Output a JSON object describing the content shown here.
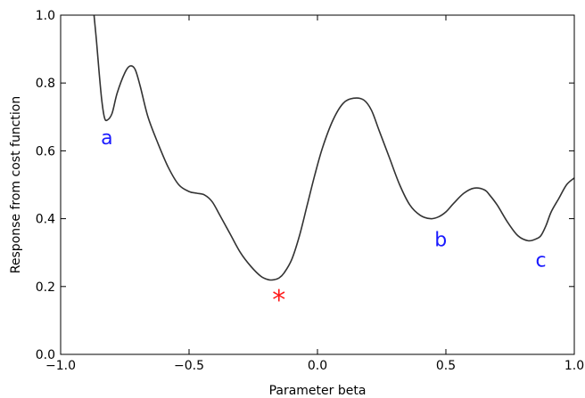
{
  "colors": {
    "curve": "#333333",
    "point_labels": "#1a1aff",
    "minimum_marker": "#ff1a1a",
    "axes": "#000000",
    "background": "#ffffff"
  },
  "chart_data": {
    "type": "line",
    "xlabel": "Parameter beta",
    "ylabel": "Response from cost function",
    "xlim": [
      -1.0,
      1.0
    ],
    "ylim": [
      0.0,
      1.0
    ],
    "grid": false,
    "xticks": [
      -1.0,
      -0.5,
      0.0,
      0.5,
      1.0
    ],
    "xtick_labels": [
      "−1.0",
      "−0.5",
      "0.0",
      "0.5",
      "1.0"
    ],
    "yticks": [
      0.0,
      0.2,
      0.4,
      0.6,
      0.8,
      1.0
    ],
    "ytick_labels": [
      "0.0",
      "0.2",
      "0.4",
      "0.6",
      "0.8",
      "1.0"
    ],
    "series": [
      {
        "x": [
          -0.87,
          -0.86,
          -0.85,
          -0.84,
          -0.83,
          -0.82,
          -0.8,
          -0.78,
          -0.75,
          -0.73,
          -0.71,
          -0.69,
          -0.66,
          -0.62,
          -0.58,
          -0.54,
          -0.5,
          -0.47,
          -0.44,
          -0.41,
          -0.38,
          -0.34,
          -0.3,
          -0.26,
          -0.22,
          -0.19,
          -0.17,
          -0.15,
          -0.13,
          -0.1,
          -0.07,
          -0.04,
          -0.01,
          0.02,
          0.06,
          0.1,
          0.14,
          0.18,
          0.21,
          0.24,
          0.28,
          0.32,
          0.36,
          0.4,
          0.44,
          0.47,
          0.5,
          0.53,
          0.57,
          0.61,
          0.65,
          0.67,
          0.7,
          0.74,
          0.78,
          0.82,
          0.85,
          0.87,
          0.89,
          0.91,
          0.94,
          0.97,
          1.0
        ],
        "y": [
          1.0,
          0.92,
          0.83,
          0.75,
          0.7,
          0.69,
          0.71,
          0.77,
          0.83,
          0.85,
          0.84,
          0.79,
          0.7,
          0.62,
          0.55,
          0.5,
          0.48,
          0.475,
          0.47,
          0.45,
          0.41,
          0.355,
          0.3,
          0.26,
          0.23,
          0.22,
          0.22,
          0.225,
          0.24,
          0.28,
          0.35,
          0.44,
          0.53,
          0.61,
          0.69,
          0.74,
          0.755,
          0.75,
          0.72,
          0.66,
          0.58,
          0.5,
          0.44,
          0.41,
          0.4,
          0.405,
          0.42,
          0.445,
          0.475,
          0.49,
          0.485,
          0.47,
          0.44,
          0.39,
          0.35,
          0.335,
          0.34,
          0.35,
          0.38,
          0.42,
          0.46,
          0.5,
          0.52
        ]
      }
    ],
    "annotations": [
      {
        "text": "a",
        "x": -0.82,
        "y": 0.64,
        "kind": "point-label"
      },
      {
        "text": "b",
        "x": 0.48,
        "y": 0.34,
        "kind": "point-label"
      },
      {
        "text": "c",
        "x": 0.87,
        "y": 0.28,
        "kind": "point-label"
      },
      {
        "text": "*",
        "x": -0.15,
        "y": 0.17,
        "kind": "minimum-marker"
      }
    ]
  }
}
